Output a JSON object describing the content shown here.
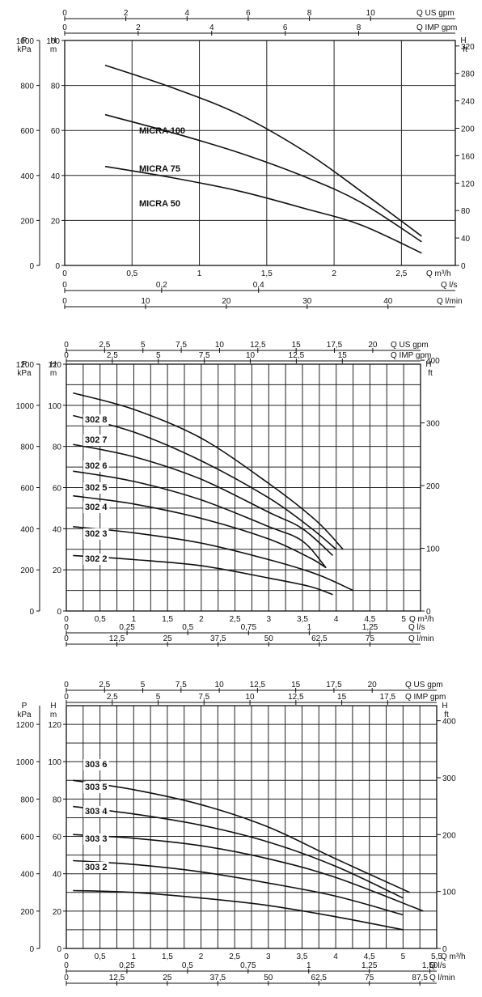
{
  "chart_data": [
    {
      "type": "line",
      "name": "micra",
      "xlabel": "Q m³/h",
      "ylabel": "H m",
      "xlim": [
        0,
        2.9
      ],
      "ylim": [
        0,
        100
      ],
      "x_ticks": [
        "0",
        "0,5",
        "1",
        "1,5",
        "2",
        "2,5"
      ],
      "y_ticks": [
        "0",
        "20",
        "40",
        "60",
        "80",
        "100"
      ],
      "left_axis": {
        "label_top": "P",
        "label_unit": "kPa",
        "ticks": [
          "0",
          "200",
          "400",
          "600",
          "800",
          "1000"
        ]
      },
      "left_axis2": {
        "label": "H",
        "label_unit": "m"
      },
      "right_axis": {
        "label": "H",
        "label_unit": "ft",
        "ticks": [
          "0",
          "40",
          "80",
          "120",
          "160",
          "200",
          "240",
          "280",
          "320"
        ]
      },
      "top_axes": [
        {
          "label": "Q US gpm",
          "ticks": [
            "0",
            "2",
            "4",
            "6",
            "8",
            "10"
          ]
        },
        {
          "label": "Q IMP gpm",
          "ticks": [
            "0",
            "2",
            "4",
            "6",
            "8"
          ]
        }
      ],
      "bottom_axes": [
        {
          "label": "Q l/s",
          "ticks": [
            "0",
            "0,2",
            "0,4"
          ]
        },
        {
          "label": "Q l/min",
          "ticks": [
            "0",
            "10",
            "20",
            "30",
            "40"
          ]
        }
      ],
      "grid": true,
      "series": [
        {
          "name": "MICRA 100",
          "x": [
            0.3,
            0.8,
            1.3,
            1.8,
            2.2,
            2.65
          ],
          "y": [
            89,
            79,
            67,
            50,
            33,
            13
          ]
        },
        {
          "name": "MICRA 75",
          "x": [
            0.3,
            0.8,
            1.3,
            1.8,
            2.2,
            2.65
          ],
          "y": [
            67,
            59,
            50,
            39,
            28,
            10.5
          ]
        },
        {
          "name": "MICRA 50",
          "x": [
            0.3,
            0.8,
            1.3,
            1.8,
            2.2,
            2.65
          ],
          "y": [
            44,
            39,
            33,
            25,
            18,
            5.5
          ]
        }
      ]
    },
    {
      "type": "line",
      "name": "302",
      "xlabel": "Q m³/h",
      "ylabel": "H m",
      "xlim": [
        0,
        5.25
      ],
      "ylim": [
        0,
        120
      ],
      "x_ticks": [
        "0",
        "0,5",
        "1",
        "1,5",
        "2",
        "2,5",
        "3",
        "3,5",
        "4",
        "4,5",
        "5"
      ],
      "y_ticks": [
        "0",
        "20",
        "40",
        "60",
        "80",
        "100",
        "120"
      ],
      "left_axis": {
        "label_top": "P",
        "label_unit": "kPa",
        "ticks": [
          "0",
          "200",
          "400",
          "600",
          "800",
          "1000",
          "1200"
        ]
      },
      "left_axis2": {
        "label": "H",
        "label_unit": "m"
      },
      "right_axis": {
        "label": "H",
        "label_unit": "ft",
        "ticks": [
          "0",
          "100",
          "200",
          "300",
          "400"
        ]
      },
      "top_axes": [
        {
          "label": "Q US gpm",
          "ticks": [
            "0",
            "2,5",
            "5",
            "7,5",
            "10",
            "12,5",
            "15",
            "17,5",
            "20"
          ]
        },
        {
          "label": "Q IMP gpm",
          "ticks": [
            "0",
            "2,5",
            "5",
            "7,5",
            "10",
            "12,5",
            "15"
          ]
        }
      ],
      "bottom_axes": [
        {
          "label": "Q l/s",
          "ticks": [
            "0",
            "0,25",
            "0,5",
            "0,75",
            "1",
            "1,25"
          ]
        },
        {
          "label": "Q l/min",
          "ticks": [
            "0",
            "12,5",
            "25",
            "37,5",
            "50",
            "62,5",
            "75"
          ]
        }
      ],
      "grid": true,
      "series": [
        {
          "name": "302 8",
          "x": [
            0.1,
            1.0,
            2.0,
            3.0,
            3.7,
            4.1
          ],
          "y": [
            106,
            98,
            84,
            62,
            44,
            30
          ]
        },
        {
          "name": "302 7",
          "x": [
            0.1,
            1.0,
            2.0,
            3.0,
            3.6,
            4.0
          ],
          "y": [
            95,
            87,
            73,
            55,
            41,
            30
          ]
        },
        {
          "name": "302 6",
          "x": [
            0.1,
            1.0,
            2.0,
            3.0,
            3.5,
            3.95
          ],
          "y": [
            81,
            75,
            64,
            48,
            40,
            27
          ]
        },
        {
          "name": "302 5",
          "x": [
            0.1,
            1.0,
            2.0,
            3.0,
            3.5,
            3.85
          ],
          "y": [
            68,
            63,
            54,
            41,
            34,
            21
          ]
        },
        {
          "name": "302 4",
          "x": [
            0.1,
            1.0,
            2.0,
            3.0,
            3.6,
            3.85
          ],
          "y": [
            56,
            52,
            45,
            35,
            26,
            21
          ]
        },
        {
          "name": "302 3",
          "x": [
            0.1,
            1.0,
            2.0,
            3.0,
            3.7,
            4.25
          ],
          "y": [
            41,
            38,
            33,
            25,
            18,
            10
          ]
        },
        {
          "name": "302 2",
          "x": [
            0.1,
            1.0,
            2.0,
            3.0,
            3.6,
            3.95
          ],
          "y": [
            27,
            25,
            22,
            16,
            12,
            8
          ]
        }
      ]
    },
    {
      "type": "line",
      "name": "303",
      "xlabel": "Q m³/h",
      "ylabel": "H m",
      "xlim": [
        0,
        5.5
      ],
      "ylim": [
        0,
        130
      ],
      "x_ticks": [
        "0",
        "0,5",
        "1",
        "1,5",
        "2",
        "2,5",
        "3",
        "3,5",
        "4",
        "4,5",
        "5",
        "5,5"
      ],
      "y_ticks": [
        "0",
        "20",
        "40",
        "60",
        "80",
        "100",
        "120"
      ],
      "left_axis": {
        "label_top": "P",
        "label_unit": "kPa",
        "ticks": [
          "0",
          "200",
          "400",
          "600",
          "800",
          "1000",
          "1200"
        ]
      },
      "left_axis2": {
        "label": "H",
        "label_unit": "m"
      },
      "right_axis": {
        "label": "H",
        "label_unit": "ft",
        "ticks": [
          "0",
          "100",
          "200",
          "300",
          "400"
        ]
      },
      "top_axes": [
        {
          "label": "Q US gpm",
          "ticks": [
            "0",
            "2,5",
            "5",
            "7,5",
            "10",
            "12,5",
            "15",
            "17,5",
            "20"
          ]
        },
        {
          "label": "Q IMP gpm",
          "ticks": [
            "0",
            "2,5",
            "5",
            "7,5",
            "10",
            "12,5",
            "15",
            "17,5"
          ]
        }
      ],
      "bottom_axes": [
        {
          "label": "Q l/s",
          "ticks": [
            "0",
            "0,25",
            "0,5",
            "0,75",
            "1",
            "1,25",
            "1,50"
          ]
        },
        {
          "label": "Q l/min",
          "ticks": [
            "0",
            "12,5",
            "25",
            "37,5",
            "50",
            "62,5",
            "75",
            "87,5"
          ]
        }
      ],
      "grid": true,
      "series": [
        {
          "name": "303 6",
          "x": [
            0.1,
            1.0,
            2.0,
            3.0,
            4.0,
            5.1
          ],
          "y": [
            90,
            85,
            77,
            65,
            48,
            30
          ]
        },
        {
          "name": "303 5",
          "x": [
            0.1,
            1.0,
            2.0,
            3.0,
            4.0,
            5.0
          ],
          "y": [
            76,
            72,
            66,
            57,
            44,
            27
          ]
        },
        {
          "name": "303 4",
          "x": [
            0.1,
            1.0,
            2.0,
            3.0,
            4.0,
            5.3
          ],
          "y": [
            61,
            59,
            55,
            48,
            38,
            20
          ]
        },
        {
          "name": "303 3",
          "x": [
            0.1,
            1.0,
            2.0,
            3.0,
            4.0,
            5.0
          ],
          "y": [
            47,
            45,
            41,
            35,
            28,
            18
          ]
        },
        {
          "name": "303 2",
          "x": [
            0.1,
            1.0,
            2.0,
            3.0,
            4.0,
            5.0
          ],
          "y": [
            31,
            30,
            27,
            23,
            17,
            10
          ]
        }
      ]
    }
  ]
}
